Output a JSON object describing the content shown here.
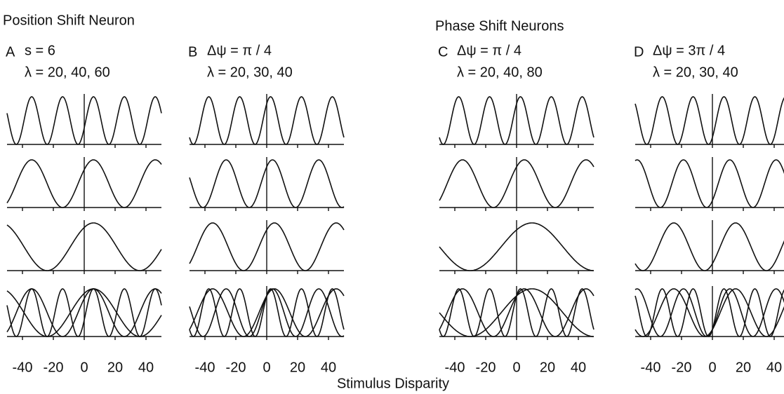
{
  "title_left": "Position Shift Neuron",
  "title_right": "Phase Shift Neurons",
  "xlabel": "Stimulus Disparity",
  "xlim": [
    -50,
    50
  ],
  "xticks": [
    -40,
    -20,
    0,
    20,
    40
  ],
  "panels": [
    {
      "letter": "A",
      "param_label": "s = 6",
      "lambda_label": "λ = 20, 40, 60",
      "shift": 6,
      "phase_pi": 0,
      "wavelengths": [
        20,
        40,
        60
      ]
    },
    {
      "letter": "B",
      "param_label": "Δψ = π / 4",
      "lambda_label": "λ = 20, 30, 40",
      "shift": 0,
      "phase_pi": 0.25,
      "wavelengths": [
        20,
        30,
        40
      ]
    },
    {
      "letter": "C",
      "param_label": "Δψ = π / 4",
      "lambda_label": "λ = 20, 40, 80",
      "shift": 0,
      "phase_pi": 0.25,
      "wavelengths": [
        20,
        40,
        80
      ]
    },
    {
      "letter": "D",
      "param_label": "Δψ = 3π / 4",
      "lambda_label": "λ = 20, 30, 40",
      "shift": 0,
      "phase_pi": 0.75,
      "wavelengths": [
        20,
        30,
        40
      ]
    }
  ]
}
